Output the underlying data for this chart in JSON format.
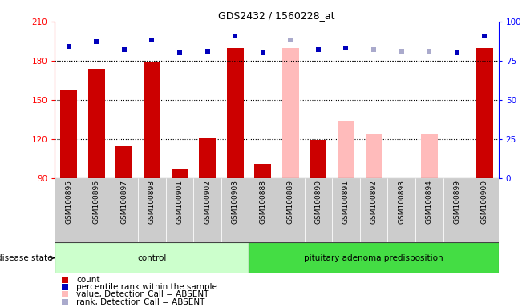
{
  "title": "GDS2432 / 1560228_at",
  "samples": [
    "GSM100895",
    "GSM100896",
    "GSM100897",
    "GSM100898",
    "GSM100901",
    "GSM100902",
    "GSM100903",
    "GSM100888",
    "GSM100889",
    "GSM100890",
    "GSM100891",
    "GSM100892",
    "GSM100893",
    "GSM100894",
    "GSM100899",
    "GSM100900"
  ],
  "groups": [
    "control",
    "control",
    "control",
    "control",
    "control",
    "control",
    "control",
    "pituitary adenoma predisposition",
    "pituitary adenoma predisposition",
    "pituitary adenoma predisposition",
    "pituitary adenoma predisposition",
    "pituitary adenoma predisposition",
    "pituitary adenoma predisposition",
    "pituitary adenoma predisposition",
    "pituitary adenoma predisposition",
    "pituitary adenoma predisposition"
  ],
  "bar_values": [
    157,
    174,
    115,
    179,
    97,
    121,
    190,
    101,
    190,
    119,
    134,
    124,
    90,
    124,
    90,
    190
  ],
  "bar_absent": [
    false,
    false,
    false,
    false,
    false,
    false,
    false,
    false,
    true,
    false,
    true,
    true,
    true,
    true,
    true,
    false
  ],
  "rank_values": [
    84,
    87,
    82,
    88,
    80,
    81,
    91,
    80,
    88,
    82,
    83,
    82,
    81,
    81,
    80,
    91
  ],
  "rank_absent": [
    false,
    false,
    false,
    false,
    false,
    false,
    false,
    false,
    true,
    false,
    false,
    true,
    true,
    true,
    false,
    false
  ],
  "ylim_left": [
    90,
    210
  ],
  "ylim_right": [
    0,
    100
  ],
  "yticks_left": [
    90,
    120,
    150,
    180,
    210
  ],
  "yticks_right": [
    0,
    25,
    50,
    75,
    100
  ],
  "hlines": [
    120,
    150,
    180
  ],
  "bar_color_present": "#cc0000",
  "bar_color_absent": "#ffbbbb",
  "rank_color_present": "#0000bb",
  "rank_color_absent": "#aaaacc",
  "control_color": "#ccffcc",
  "pit_color": "#44dd44",
  "tick_bg_color": "#cccccc",
  "disease_state_label": "disease state",
  "legend_items": [
    {
      "label": "count",
      "color": "#cc0000"
    },
    {
      "label": "percentile rank within the sample",
      "color": "#0000bb"
    },
    {
      "label": "value, Detection Call = ABSENT",
      "color": "#ffbbbb"
    },
    {
      "label": "rank, Detection Call = ABSENT",
      "color": "#aaaacc"
    }
  ]
}
